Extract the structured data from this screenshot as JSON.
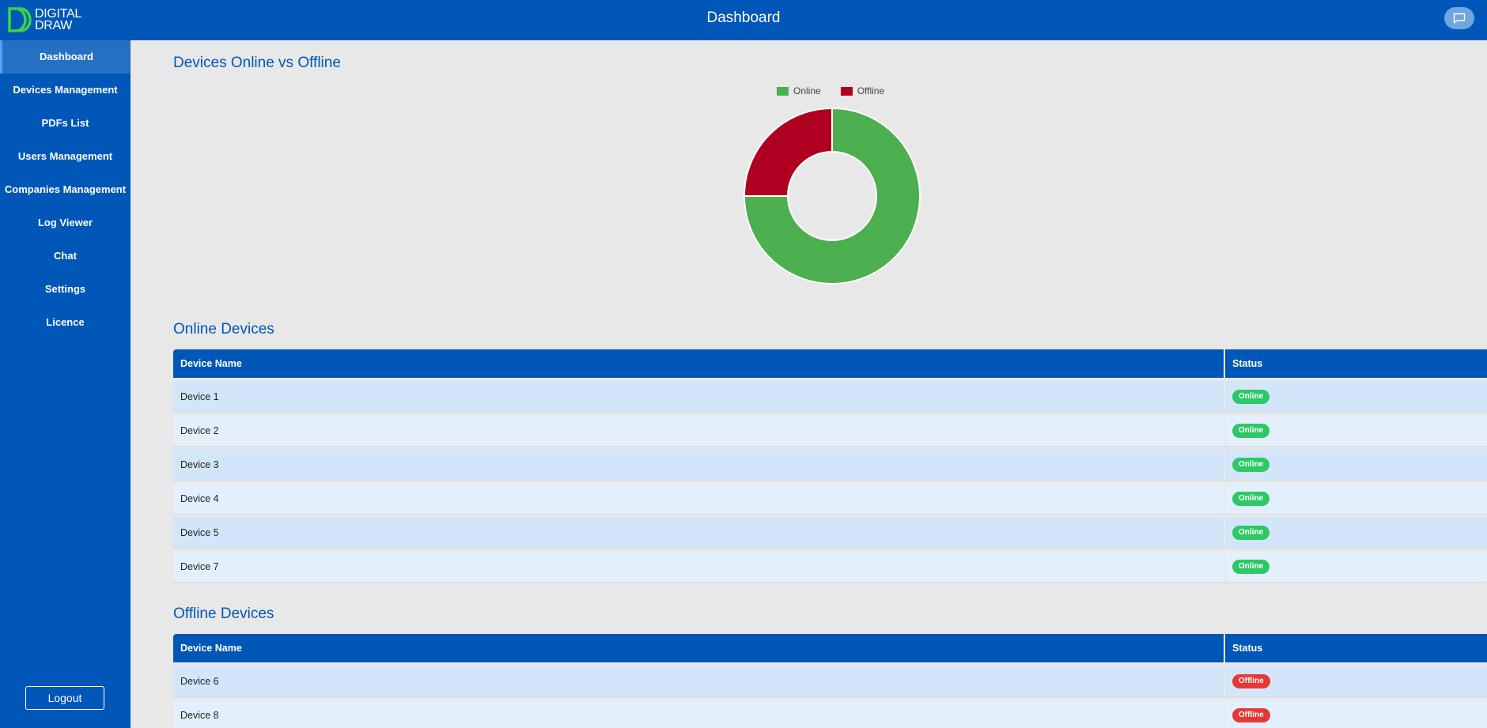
{
  "app": {
    "logo_text_line1": "DIGITAL",
    "logo_text_line2": "DRAW",
    "title": "Dashboard",
    "colors": {
      "brand": "#0057b7",
      "online": "#4caf50",
      "offline": "#b00020"
    }
  },
  "sidebar": {
    "items": [
      {
        "label": "Dashboard",
        "active": true
      },
      {
        "label": "Devices Management"
      },
      {
        "label": "PDFs List"
      },
      {
        "label": "Users Management"
      },
      {
        "label": "Companies Management"
      },
      {
        "label": "Log Viewer"
      },
      {
        "label": "Chat"
      },
      {
        "label": "Settings"
      },
      {
        "label": "Licence"
      }
    ],
    "logout_label": "Logout"
  },
  "chart_section": {
    "title": "Devices Online vs Offline"
  },
  "chart_data": {
    "type": "pie",
    "donut": true,
    "categories": [
      "Online",
      "Offline"
    ],
    "values": [
      6,
      2
    ],
    "colors": [
      "#4caf50",
      "#b00020"
    ],
    "legend": "top"
  },
  "online_section": {
    "title": "Online Devices",
    "columns": [
      "Device Name",
      "Status"
    ],
    "rows": [
      {
        "name": "Device 1",
        "status": "Online"
      },
      {
        "name": "Device 2",
        "status": "Online"
      },
      {
        "name": "Device 3",
        "status": "Online"
      },
      {
        "name": "Device 4",
        "status": "Online"
      },
      {
        "name": "Device 5",
        "status": "Online"
      },
      {
        "name": "Device 7",
        "status": "Online"
      }
    ]
  },
  "offline_section": {
    "title": "Offline Devices",
    "columns": [
      "Device Name",
      "Status"
    ],
    "rows": [
      {
        "name": "Device 6",
        "status": "Offline"
      },
      {
        "name": "Device 8",
        "status": "Offline"
      }
    ]
  }
}
